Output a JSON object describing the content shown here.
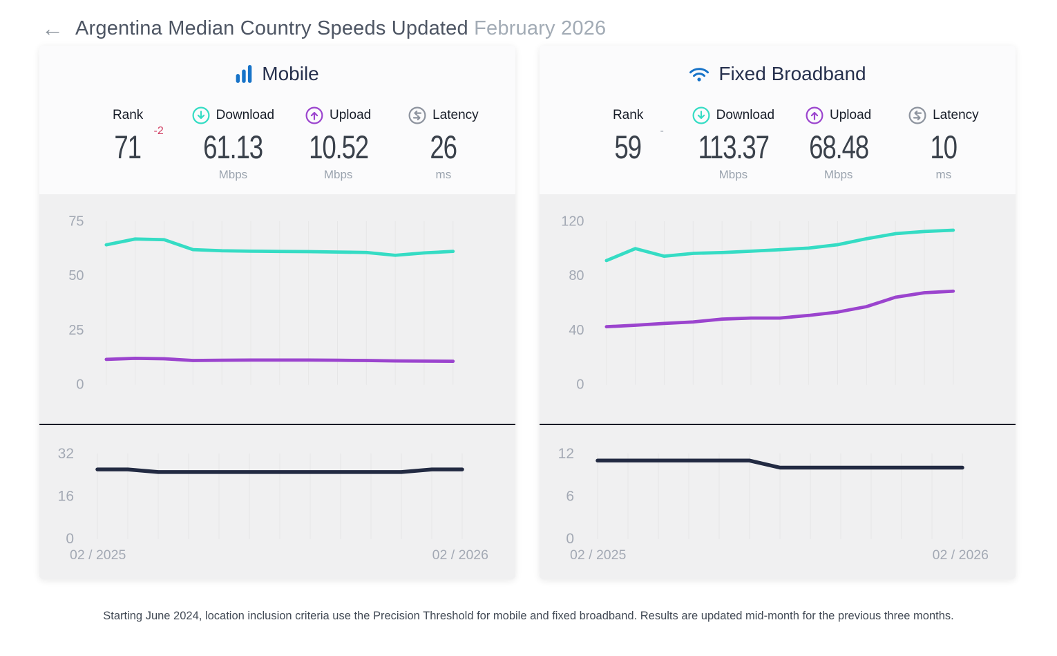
{
  "header": {
    "back_icon": "←",
    "title": "Argentina Median Country Speeds Updated",
    "date": "February 2026"
  },
  "panels": [
    {
      "title": "Mobile",
      "icon": "mobile-signal-bars-icon",
      "stats": {
        "rank": {
          "label": "Rank",
          "value": "71",
          "delta": "-2"
        },
        "download": {
          "label": "Download",
          "value": "61.13",
          "unit": "Mbps"
        },
        "upload": {
          "label": "Upload",
          "value": "10.52",
          "unit": "Mbps"
        },
        "latency": {
          "label": "Latency",
          "value": "26",
          "unit": "ms"
        }
      }
    },
    {
      "title": "Fixed Broadband",
      "icon": "wifi-icon",
      "stats": {
        "rank": {
          "label": "Rank",
          "value": "59",
          "delta": "-"
        },
        "download": {
          "label": "Download",
          "value": "113.37",
          "unit": "Mbps"
        },
        "upload": {
          "label": "Upload",
          "value": "68.48",
          "unit": "Mbps"
        },
        "latency": {
          "label": "Latency",
          "value": "10",
          "unit": "ms"
        }
      }
    }
  ],
  "footnote": "Starting June 2024, location inclusion criteria use the Precision Threshold for mobile and fixed broadband. Results are updated mid-month for the previous three months.",
  "colors": {
    "download_line": "#35dcc4",
    "upload_line": "#9b44ce",
    "latency_line": "#222a42",
    "accent_blue": "#1773c8",
    "icon_gray": "#8d939e",
    "rank_delta_down": "#cf3a5f",
    "rank_delta_flat": "#9aa1ab",
    "chart_bg": "#f0f0f1",
    "grid": "#e6e6e7",
    "axis_label": "#a3a9b4"
  },
  "chart_data": [
    {
      "type": "line",
      "panel": "Mobile",
      "name": "mobile-speed-history",
      "x_start_label": "02 / 2025",
      "x_end_label": "02 / 2026",
      "x_points": 13,
      "yticks": [
        75,
        50,
        25,
        0
      ],
      "ylim": [
        0,
        75
      ],
      "grid": "vertical-only",
      "legend": "none",
      "show_x_labels": false,
      "series": [
        {
          "name": "Download (Mbps)",
          "color_key": "download_line",
          "values": [
            64.1,
            66.8,
            66.5,
            61.9,
            61.4,
            61.2,
            61.1,
            61.0,
            60.8,
            60.6,
            59.3,
            60.4,
            61.13
          ]
        },
        {
          "name": "Upload (Mbps)",
          "color_key": "upload_line",
          "values": [
            11.4,
            11.9,
            11.7,
            10.9,
            11.0,
            11.1,
            11.1,
            11.1,
            11.0,
            10.9,
            10.7,
            10.6,
            10.52
          ]
        }
      ]
    },
    {
      "type": "line",
      "panel": "Mobile",
      "name": "mobile-latency-history",
      "x_start_label": "02 / 2025",
      "x_end_label": "02 / 2026",
      "x_points": 13,
      "yticks": [
        32,
        16,
        0
      ],
      "ylim": [
        0,
        32
      ],
      "grid": "vertical-only",
      "legend": "none",
      "show_x_labels": true,
      "series": [
        {
          "name": "Latency (ms)",
          "color_key": "latency_line",
          "values": [
            26,
            26,
            25,
            25,
            25,
            25,
            25,
            25,
            25,
            25,
            25,
            26,
            26
          ]
        }
      ]
    },
    {
      "type": "line",
      "panel": "Fixed Broadband",
      "name": "fixed-speed-history",
      "x_start_label": "02 / 2025",
      "x_end_label": "02 / 2026",
      "x_points": 13,
      "yticks": [
        120,
        80,
        40,
        0
      ],
      "ylim": [
        0,
        120
      ],
      "grid": "vertical-only",
      "legend": "none",
      "show_x_labels": false,
      "series": [
        {
          "name": "Download (Mbps)",
          "color_key": "download_line",
          "values": [
            91.0,
            99.8,
            94.2,
            96.3,
            96.9,
            97.9,
            99.0,
            100.2,
            102.7,
            107.1,
            110.8,
            112.4,
            113.37
          ]
        },
        {
          "name": "Upload (Mbps)",
          "color_key": "upload_line",
          "values": [
            42.3,
            43.4,
            44.7,
            45.8,
            47.9,
            48.7,
            48.7,
            50.6,
            53.1,
            57.1,
            64.0,
            67.3,
            68.48
          ]
        }
      ]
    },
    {
      "type": "line",
      "panel": "Fixed Broadband",
      "name": "fixed-latency-history",
      "x_start_label": "02 / 2025",
      "x_end_label": "02 / 2026",
      "x_points": 13,
      "yticks": [
        12,
        6,
        0
      ],
      "ylim": [
        0,
        12
      ],
      "grid": "vertical-only",
      "legend": "none",
      "show_x_labels": true,
      "series": [
        {
          "name": "Latency (ms)",
          "color_key": "latency_line",
          "values": [
            11,
            11,
            11,
            11,
            11,
            11,
            10,
            10,
            10,
            10,
            10,
            10,
            10
          ]
        }
      ]
    }
  ]
}
